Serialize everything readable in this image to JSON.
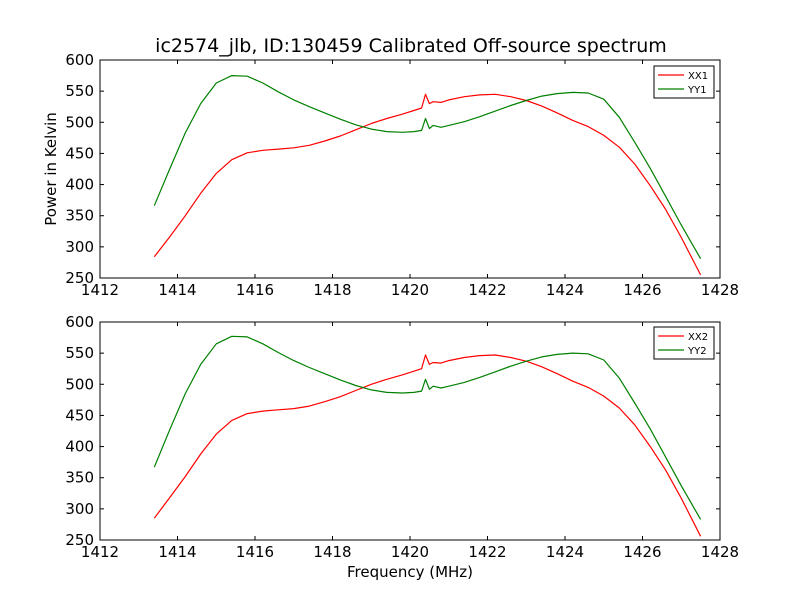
{
  "figure": {
    "title": "ic2574_jlb, ID:130459 Calibrated Off-source spectrum",
    "xlabel": "Frequency (MHz)",
    "ylabel": "Power in Kelvin"
  },
  "chart_data": [
    {
      "type": "line",
      "xlabel": "",
      "ylabel": "Power in Kelvin",
      "xlim": [
        1412,
        1428
      ],
      "ylim": [
        250,
        600
      ],
      "xticks": [
        "1412",
        "1414",
        "1416",
        "1418",
        "1420",
        "1422",
        "1424",
        "1426",
        "1428"
      ],
      "yticks": [
        "250",
        "300",
        "350",
        "400",
        "450",
        "500",
        "550",
        "600"
      ],
      "legend": "top-right",
      "series": [
        {
          "name": "XX1",
          "color": "#ff0000",
          "x": [
            1413.4,
            1413.8,
            1414.2,
            1414.6,
            1415.0,
            1415.4,
            1415.8,
            1416.2,
            1416.6,
            1417.0,
            1417.4,
            1417.8,
            1418.2,
            1418.6,
            1419.0,
            1419.4,
            1419.8,
            1420.1,
            1420.3,
            1420.4,
            1420.5,
            1420.6,
            1420.8,
            1421.0,
            1421.4,
            1421.8,
            1422.2,
            1422.6,
            1423.0,
            1423.4,
            1423.8,
            1424.2,
            1424.6,
            1425.0,
            1425.4,
            1425.8,
            1426.2,
            1426.6,
            1427.0,
            1427.5
          ],
          "y": [
            284,
            316,
            350,
            386,
            418,
            440,
            451,
            455,
            457,
            459,
            463,
            470,
            478,
            488,
            498,
            506,
            513,
            519,
            523,
            545,
            530,
            533,
            532,
            536,
            541,
            544,
            545,
            541,
            535,
            526,
            515,
            503,
            493,
            479,
            460,
            433,
            398,
            360,
            315,
            255
          ]
        },
        {
          "name": "YY1",
          "color": "#008000",
          "x": [
            1413.4,
            1413.8,
            1414.2,
            1414.6,
            1415.0,
            1415.4,
            1415.8,
            1416.2,
            1416.6,
            1417.0,
            1417.4,
            1417.8,
            1418.2,
            1418.6,
            1419.0,
            1419.4,
            1419.8,
            1420.1,
            1420.3,
            1420.4,
            1420.5,
            1420.6,
            1420.8,
            1421.0,
            1421.4,
            1421.8,
            1422.2,
            1422.6,
            1423.0,
            1423.4,
            1423.8,
            1424.2,
            1424.6,
            1425.0,
            1425.4,
            1425.8,
            1426.2,
            1426.6,
            1427.0,
            1427.5
          ],
          "y": [
            366,
            425,
            483,
            530,
            563,
            575,
            574,
            563,
            549,
            536,
            525,
            515,
            505,
            496,
            489,
            485,
            484,
            485,
            487,
            506,
            490,
            495,
            492,
            495,
            501,
            509,
            518,
            527,
            535,
            542,
            546,
            548,
            547,
            537,
            508,
            468,
            426,
            381,
            335,
            281
          ]
        }
      ]
    },
    {
      "type": "line",
      "xlabel": "Frequency (MHz)",
      "ylabel": "",
      "xlim": [
        1412,
        1428
      ],
      "ylim": [
        250,
        600
      ],
      "xticks": [
        "1412",
        "1414",
        "1416",
        "1418",
        "1420",
        "1422",
        "1424",
        "1426",
        "1428"
      ],
      "yticks": [
        "250",
        "300",
        "350",
        "400",
        "450",
        "500",
        "550",
        "600"
      ],
      "legend": "top-right",
      "series": [
        {
          "name": "XX2",
          "color": "#ff0000",
          "x": [
            1413.4,
            1413.8,
            1414.2,
            1414.6,
            1415.0,
            1415.4,
            1415.8,
            1416.2,
            1416.6,
            1417.0,
            1417.4,
            1417.8,
            1418.2,
            1418.6,
            1419.0,
            1419.4,
            1419.8,
            1420.1,
            1420.3,
            1420.4,
            1420.5,
            1420.6,
            1420.8,
            1421.0,
            1421.4,
            1421.8,
            1422.2,
            1422.6,
            1423.0,
            1423.4,
            1423.8,
            1424.2,
            1424.6,
            1425.0,
            1425.4,
            1425.8,
            1426.2,
            1426.6,
            1427.0,
            1427.5
          ],
          "y": [
            285,
            318,
            352,
            388,
            420,
            442,
            453,
            457,
            459,
            461,
            465,
            472,
            480,
            490,
            500,
            508,
            515,
            521,
            525,
            547,
            532,
            535,
            534,
            538,
            543,
            546,
            547,
            543,
            537,
            528,
            517,
            505,
            495,
            481,
            462,
            435,
            400,
            362,
            317,
            256
          ]
        },
        {
          "name": "YY2",
          "color": "#008000",
          "x": [
            1413.4,
            1413.8,
            1414.2,
            1414.6,
            1415.0,
            1415.4,
            1415.8,
            1416.2,
            1416.6,
            1417.0,
            1417.4,
            1417.8,
            1418.2,
            1418.6,
            1419.0,
            1419.4,
            1419.8,
            1420.1,
            1420.3,
            1420.4,
            1420.5,
            1420.6,
            1420.8,
            1421.0,
            1421.4,
            1421.8,
            1422.2,
            1422.6,
            1423.0,
            1423.4,
            1423.8,
            1424.2,
            1424.6,
            1425.0,
            1425.4,
            1425.8,
            1426.2,
            1426.6,
            1427.0,
            1427.5
          ],
          "y": [
            367,
            427,
            485,
            532,
            565,
            577,
            576,
            565,
            551,
            538,
            527,
            517,
            507,
            498,
            491,
            487,
            486,
            487,
            489,
            508,
            492,
            497,
            494,
            497,
            503,
            511,
            520,
            529,
            537,
            544,
            548,
            550,
            549,
            539,
            510,
            470,
            428,
            383,
            337,
            283
          ]
        }
      ]
    }
  ]
}
